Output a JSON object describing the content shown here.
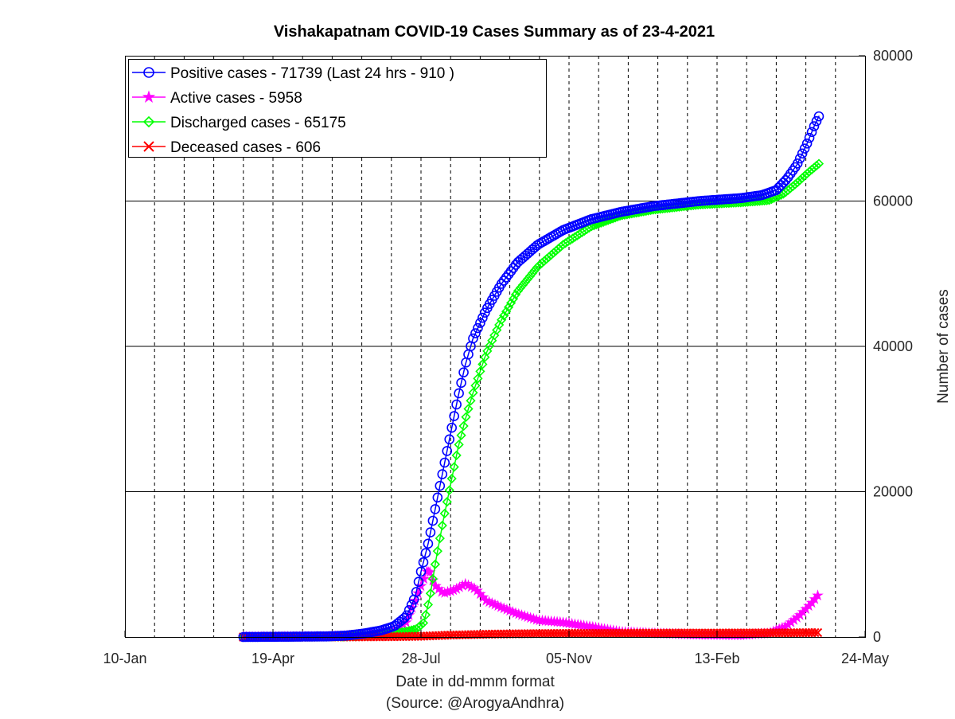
{
  "chart_data": {
    "type": "line",
    "title": "Vishakapatnam COVID-19 Cases Summary as of 23-4-2021",
    "xlabel": "Date in dd-mmm format",
    "xlabel_source": "(Source: @ArogyaAndhra)",
    "ylabel": "Number of cases",
    "x_ticks": [
      "10-Jan",
      "19-Apr",
      "28-Jul",
      "05-Nov",
      "13-Feb",
      "24-May"
    ],
    "y_ticks": [
      "0",
      "20000",
      "40000",
      "60000",
      "80000"
    ],
    "xlim": [
      "2020-01-10",
      "2021-05-24"
    ],
    "ylim": [
      0,
      80000
    ],
    "y_axis_side": "right",
    "grid": "dashed vertical, solid horizontal",
    "legend_position": "top-left",
    "colors": {
      "positive": "#0000ff",
      "active": "#ff00ff",
      "discharged": "#00ff00",
      "deceased": "#ff0000"
    },
    "series": [
      {
        "name": "Positive cases - 71739 (Last 24 hrs - 910 )",
        "key": "positive",
        "marker": "circle",
        "points": [
          [
            "2020-03-30",
            0
          ],
          [
            "2020-04-15",
            20
          ],
          [
            "2020-05-01",
            40
          ],
          [
            "2020-05-12",
            60
          ],
          [
            "2020-05-25",
            80
          ],
          [
            "2020-06-08",
            200
          ],
          [
            "2020-06-20",
            500
          ],
          [
            "2020-07-01",
            900
          ],
          [
            "2020-07-10",
            1500
          ],
          [
            "2020-07-18",
            2800
          ],
          [
            "2020-07-24",
            5500
          ],
          [
            "2020-07-28",
            9000
          ],
          [
            "2020-08-02",
            13000
          ],
          [
            "2020-08-07",
            18000
          ],
          [
            "2020-08-12",
            23000
          ],
          [
            "2020-08-17",
            28000
          ],
          [
            "2020-08-22",
            33000
          ],
          [
            "2020-08-27",
            37500
          ],
          [
            "2020-09-01",
            41000
          ],
          [
            "2020-09-10",
            45000
          ],
          [
            "2020-09-20",
            48500
          ],
          [
            "2020-10-01",
            51500
          ],
          [
            "2020-10-15",
            54000
          ],
          [
            "2020-11-01",
            56000
          ],
          [
            "2020-11-20",
            57500
          ],
          [
            "2020-12-10",
            58500
          ],
          [
            "2021-01-01",
            59300
          ],
          [
            "2021-02-01",
            60000
          ],
          [
            "2021-03-01",
            60400
          ],
          [
            "2021-03-15",
            60800
          ],
          [
            "2021-03-25",
            61500
          ],
          [
            "2021-04-01",
            63000
          ],
          [
            "2021-04-08",
            65000
          ],
          [
            "2021-04-15",
            68000
          ],
          [
            "2021-04-20",
            70500
          ],
          [
            "2021-04-23",
            71739
          ]
        ]
      },
      {
        "name": "Active cases - 5958",
        "key": "active",
        "marker": "star",
        "points": [
          [
            "2020-03-30",
            0
          ],
          [
            "2020-04-15",
            20
          ],
          [
            "2020-05-01",
            30
          ],
          [
            "2020-05-12",
            20
          ],
          [
            "2020-05-25",
            40
          ],
          [
            "2020-06-08",
            150
          ],
          [
            "2020-06-20",
            300
          ],
          [
            "2020-07-01",
            500
          ],
          [
            "2020-07-10",
            900
          ],
          [
            "2020-07-18",
            2000
          ],
          [
            "2020-07-24",
            5000
          ],
          [
            "2020-07-30",
            8000
          ],
          [
            "2020-08-02",
            9500
          ],
          [
            "2020-08-06",
            7200
          ],
          [
            "2020-08-12",
            6000
          ],
          [
            "2020-08-20",
            6500
          ],
          [
            "2020-08-27",
            7300
          ],
          [
            "2020-09-03",
            6600
          ],
          [
            "2020-09-10",
            5000
          ],
          [
            "2020-09-20",
            4100
          ],
          [
            "2020-10-01",
            3200
          ],
          [
            "2020-10-15",
            2300
          ],
          [
            "2020-11-01",
            2000
          ],
          [
            "2020-11-20",
            1400
          ],
          [
            "2020-12-10",
            700
          ],
          [
            "2021-01-01",
            500
          ],
          [
            "2021-02-01",
            300
          ],
          [
            "2021-03-01",
            250
          ],
          [
            "2021-03-20",
            500
          ],
          [
            "2021-04-01",
            1500
          ],
          [
            "2021-04-10",
            3000
          ],
          [
            "2021-04-18",
            4700
          ],
          [
            "2021-04-23",
            5958
          ]
        ]
      },
      {
        "name": "Discharged cases - 65175",
        "key": "discharged",
        "marker": "diamond",
        "points": [
          [
            "2020-03-30",
            0
          ],
          [
            "2020-04-20",
            10
          ],
          [
            "2020-05-15",
            30
          ],
          [
            "2020-06-08",
            50
          ],
          [
            "2020-06-20",
            150
          ],
          [
            "2020-07-01",
            350
          ],
          [
            "2020-07-10",
            550
          ],
          [
            "2020-07-18",
            750
          ],
          [
            "2020-07-25",
            1100
          ],
          [
            "2020-07-30",
            2000
          ],
          [
            "2020-08-03",
            5500
          ],
          [
            "2020-08-07",
            10500
          ],
          [
            "2020-08-12",
            16000
          ],
          [
            "2020-08-17",
            21000
          ],
          [
            "2020-08-22",
            26000
          ],
          [
            "2020-08-27",
            30000
          ],
          [
            "2020-09-01",
            33500
          ],
          [
            "2020-09-10",
            39000
          ],
          [
            "2020-09-20",
            43500
          ],
          [
            "2020-10-01",
            47500
          ],
          [
            "2020-10-15",
            51000
          ],
          [
            "2020-11-01",
            54000
          ],
          [
            "2020-11-20",
            56500
          ],
          [
            "2020-12-10",
            58000
          ],
          [
            "2021-01-01",
            58800
          ],
          [
            "2021-02-01",
            59500
          ],
          [
            "2021-03-01",
            59800
          ],
          [
            "2021-03-20",
            60100
          ],
          [
            "2021-03-30",
            61000
          ],
          [
            "2021-04-08",
            62500
          ],
          [
            "2021-04-16",
            64000
          ],
          [
            "2021-04-23",
            65175
          ]
        ]
      },
      {
        "name": "Deceased cases - 606",
        "key": "deceased",
        "marker": "x",
        "points": [
          [
            "2020-03-30",
            0
          ],
          [
            "2020-05-01",
            0
          ],
          [
            "2020-06-08",
            5
          ],
          [
            "2020-07-10",
            40
          ],
          [
            "2020-07-28",
            100
          ],
          [
            "2020-08-15",
            250
          ],
          [
            "2020-09-15",
            400
          ],
          [
            "2020-10-15",
            470
          ],
          [
            "2020-11-15",
            500
          ],
          [
            "2020-12-15",
            520
          ],
          [
            "2021-01-15",
            535
          ],
          [
            "2021-02-15",
            545
          ],
          [
            "2021-03-15",
            560
          ],
          [
            "2021-04-05",
            575
          ],
          [
            "2021-04-23",
            606
          ]
        ]
      }
    ]
  }
}
